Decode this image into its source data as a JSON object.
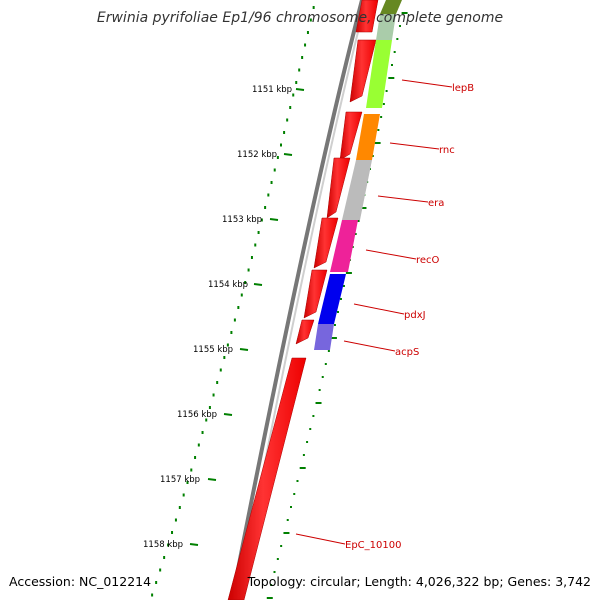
{
  "title": "Erwinia pyrifoliae Ep1/96 chromosome, complete genome",
  "accession_label": "Accession: NC_012214",
  "summary_label": "Topology: circular; Length: 4,026,322 bp; Genes: 3,742",
  "colors": {
    "backbone": "#888888",
    "tick": "#008000",
    "label": "#cc0000",
    "cds_forward": "#ee0000",
    "lepB": "#99ff33",
    "rnc": "#ff8800",
    "era": "#bbbbbb",
    "recO": "#ee2299",
    "pdxJ": "#0000ee",
    "acpS": "#7766dd"
  },
  "kbp_labels": [
    "1151 kbp",
    "1152 kbp",
    "1153 kbp",
    "1154 kbp",
    "1155 kbp",
    "1156 kbp",
    "1157 kbp",
    "1158 kbp"
  ],
  "genes": [
    {
      "name": "lepB",
      "color_key": "lepB"
    },
    {
      "name": "rnc",
      "color_key": "rnc"
    },
    {
      "name": "era",
      "color_key": "era"
    },
    {
      "name": "recO",
      "color_key": "recO"
    },
    {
      "name": "pdxJ",
      "color_key": "pdxJ"
    },
    {
      "name": "acpS",
      "color_key": "acpS"
    },
    {
      "name": "EpC_10100",
      "color_key": "cds_forward"
    }
  ]
}
